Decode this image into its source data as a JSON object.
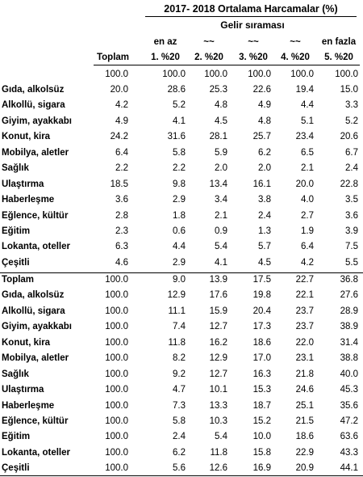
{
  "title": "2017- 2018 Ortalama Harcamalar (%)",
  "subtitle": "Gelir sıraması",
  "headers": {
    "row1": [
      "",
      "en az",
      "~~",
      "~~",
      "~~",
      "en fazla"
    ],
    "row2": [
      "Toplam",
      "1. %20",
      "2. %20",
      "3. %20",
      "4. %20",
      "5. %20"
    ]
  },
  "section1": {
    "total_row": [
      "100.0",
      "100.0",
      "100.0",
      "100.0",
      "100.0",
      "100.0"
    ],
    "rows": [
      {
        "label": "Gıda, alkolsüz",
        "values": [
          "20.0",
          "28.6",
          "25.3",
          "22.6",
          "19.4",
          "15.0"
        ]
      },
      {
        "label": "Alkollü, sigara",
        "values": [
          "4.2",
          "5.2",
          "4.8",
          "4.9",
          "4.4",
          "3.3"
        ]
      },
      {
        "label": "Giyim, ayakkabı",
        "values": [
          "4.9",
          "4.1",
          "4.5",
          "4.8",
          "5.1",
          "5.2"
        ]
      },
      {
        "label": "Konut, kira",
        "values": [
          "24.2",
          "31.6",
          "28.1",
          "25.7",
          "23.4",
          "20.6"
        ]
      },
      {
        "label": "Mobilya, aletler",
        "values": [
          "6.4",
          "5.8",
          "5.9",
          "6.2",
          "6.5",
          "6.7"
        ]
      },
      {
        "label": "Sağlık",
        "values": [
          "2.2",
          "2.2",
          "2.0",
          "2.0",
          "2.1",
          "2.4"
        ]
      },
      {
        "label": "Ulaştırma",
        "values": [
          "18.5",
          "9.8",
          "13.4",
          "16.1",
          "20.0",
          "22.8"
        ]
      },
      {
        "label": "Haberleşme",
        "values": [
          "3.6",
          "2.9",
          "3.4",
          "3.8",
          "4.0",
          "3.5"
        ]
      },
      {
        "label": "Eğlence, kültür",
        "values": [
          "2.8",
          "1.8",
          "2.1",
          "2.4",
          "2.7",
          "3.6"
        ]
      },
      {
        "label": "Eğitim",
        "values": [
          "2.3",
          "0.6",
          "0.9",
          "1.3",
          "1.9",
          "3.9"
        ]
      },
      {
        "label": "Lokanta, oteller",
        "values": [
          "6.3",
          "4.4",
          "5.4",
          "5.7",
          "6.4",
          "7.5"
        ]
      },
      {
        "label": "Çeşitli",
        "values": [
          "4.6",
          "2.9",
          "4.1",
          "4.5",
          "4.2",
          "5.5"
        ]
      }
    ]
  },
  "section2": {
    "rows": [
      {
        "label": "Toplam",
        "values": [
          "100.0",
          "9.0",
          "13.9",
          "17.5",
          "22.7",
          "36.8"
        ]
      },
      {
        "label": "Gıda, alkolsüz",
        "values": [
          "100.0",
          "12.9",
          "17.6",
          "19.8",
          "22.1",
          "27.6"
        ]
      },
      {
        "label": "Alkollü, sigara",
        "values": [
          "100.0",
          "11.1",
          "15.9",
          "20.4",
          "23.7",
          "28.9"
        ]
      },
      {
        "label": "Giyim, ayakkabı",
        "values": [
          "100.0",
          "7.4",
          "12.7",
          "17.3",
          "23.7",
          "38.9"
        ]
      },
      {
        "label": "Konut, kira",
        "values": [
          "100.0",
          "11.8",
          "16.2",
          "18.6",
          "22.0",
          "31.4"
        ]
      },
      {
        "label": "Mobilya, aletler",
        "values": [
          "100.0",
          "8.2",
          "12.9",
          "17.0",
          "23.1",
          "38.8"
        ]
      },
      {
        "label": "Sağlık",
        "values": [
          "100.0",
          "9.2",
          "12.7",
          "16.3",
          "21.8",
          "40.0"
        ]
      },
      {
        "label": "Ulaştırma",
        "values": [
          "100.0",
          "4.7",
          "10.1",
          "15.3",
          "24.6",
          "45.3"
        ]
      },
      {
        "label": "Haberleşme",
        "values": [
          "100.0",
          "7.3",
          "13.3",
          "18.7",
          "25.1",
          "35.6"
        ]
      },
      {
        "label": "Eğlence, kültür",
        "values": [
          "100.0",
          "5.8",
          "10.3",
          "15.2",
          "21.5",
          "47.2"
        ]
      },
      {
        "label": "Eğitim",
        "values": [
          "100.0",
          "2.4",
          "5.4",
          "10.0",
          "18.6",
          "63.6"
        ]
      },
      {
        "label": "Lokanta, oteller",
        "values": [
          "100.0",
          "6.2",
          "11.8",
          "15.8",
          "22.9",
          "43.3"
        ]
      },
      {
        "label": "Çeşitli",
        "values": [
          "100.0",
          "5.6",
          "12.6",
          "16.9",
          "20.9",
          "44.1"
        ]
      }
    ]
  }
}
